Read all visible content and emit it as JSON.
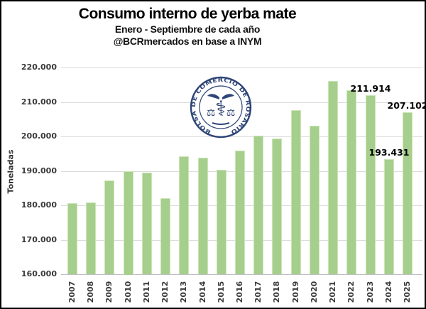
{
  "header": {
    "title": "Consumo interno de yerba mate",
    "subtitle1": "Enero - Septiembre de cada año",
    "subtitle2": "@BCRmercados en base a INYM"
  },
  "watermark": {
    "org": "BOLSA DE COMERCIO DE ROSARIO",
    "color": "#2E4577",
    "scales_glyph": "⚖",
    "caduceus_glyph": "⚕"
  },
  "colors": {
    "bar_fill": "#A6CE8C",
    "bar_edge": "#CDE6BA",
    "gridline": "#DCDCDC",
    "axis_line": "#BFBFBF",
    "tick_text": "#3a3a3a",
    "title_text": "#000000",
    "frame_border": "#000000"
  },
  "chart_data": {
    "type": "bar",
    "title": "Consumo interno de yerba mate",
    "subtitle": "Enero - Septiembre de cada año @BCRmercados en base a INYM",
    "xlabel": "",
    "ylabel": "Toneladas",
    "ylim": [
      160000,
      220000
    ],
    "ytick_step": 10000,
    "ytick_labels_top_down": [
      "220.000",
      "210.000",
      "200.000",
      "190.000",
      "180.000",
      "170.000",
      "160.000"
    ],
    "grid": true,
    "legend": "none",
    "categories": [
      "2007",
      "2008",
      "2009",
      "2010",
      "2011",
      "2012",
      "2013",
      "2014",
      "2015",
      "2016",
      "2017",
      "2018",
      "2019",
      "2020",
      "2021",
      "2022",
      "2023",
      "2024",
      "2025"
    ],
    "values": [
      180600,
      180800,
      187300,
      190000,
      189500,
      182000,
      194200,
      193800,
      190400,
      195900,
      200200,
      199300,
      207700,
      203000,
      216100,
      213300,
      211914,
      193431,
      207102
    ],
    "data_labels": [
      {
        "category": "2023",
        "text": "211.914"
      },
      {
        "category": "2024",
        "text": "193.431"
      },
      {
        "category": "2025",
        "text": "207.102"
      }
    ]
  }
}
